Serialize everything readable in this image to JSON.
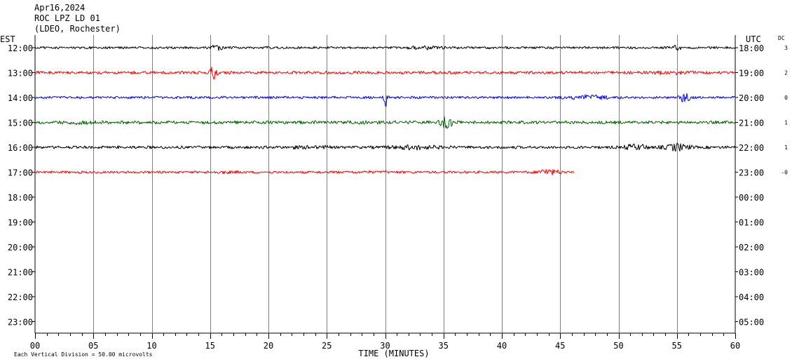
{
  "header": {
    "date": "Apr16,2024",
    "station": "ROC LPZ LD 01",
    "network": "(LDEO, Rochester)"
  },
  "left_axis_label": "EST",
  "right_axis_label": "UTC",
  "dc_label": "DC",
  "footer": {
    "scale_note": "Each Vertical Division =   50.00 microvolts",
    "xlabel": "TIME (MINUTES)"
  },
  "colors": {
    "black": "#000000",
    "red": "#ff0000",
    "blue": "#0000ff",
    "green": "#006400",
    "grid": "#808080"
  },
  "chart_data": {
    "type": "line",
    "title": "ROC LPZ LD 01",
    "xlabel": "TIME (MINUTES)",
    "ylabel": "",
    "xlim": [
      0,
      60
    ],
    "x_ticks": [
      "00",
      "05",
      "10",
      "15",
      "20",
      "25",
      "30",
      "35",
      "40",
      "45",
      "50",
      "55",
      "60"
    ],
    "minor_tick_step": 1,
    "grid": "vertical lines every 5 minutes",
    "rows": [
      {
        "est": "12:00",
        "utc": "18:00",
        "dc": "3"
      },
      {
        "est": "13:00",
        "utc": "19:00",
        "dc": "2"
      },
      {
        "est": "14:00",
        "utc": "20:00",
        "dc": "0"
      },
      {
        "est": "15:00",
        "utc": "21:00",
        "dc": "1"
      },
      {
        "est": "16:00",
        "utc": "22:00",
        "dc": "1"
      },
      {
        "est": "17:00",
        "utc": "23:00",
        "dc": "-0"
      },
      {
        "est": "18:00",
        "utc": "00:00",
        "dc": ""
      },
      {
        "est": "19:00",
        "utc": "01:00",
        "dc": ""
      },
      {
        "est": "20:00",
        "utc": "02:00",
        "dc": ""
      },
      {
        "est": "21:00",
        "utc": "03:00",
        "dc": ""
      },
      {
        "est": "22:00",
        "utc": "04:00",
        "dc": ""
      },
      {
        "est": "23:00",
        "utc": "05:00",
        "dc": ""
      }
    ],
    "series": [
      {
        "est": "12:00",
        "color": "black",
        "end_minute": 60,
        "base_amp": 1.8,
        "bursts": [
          [
            15.5,
            0.5,
            3.0
          ],
          [
            33.5,
            1.5,
            2.0
          ],
          [
            55.0,
            0.4,
            3.0
          ]
        ]
      },
      {
        "est": "13:00",
        "color": "red",
        "end_minute": 60,
        "base_amp": 2.2,
        "bursts": [
          [
            15.3,
            0.3,
            5.0
          ],
          [
            54.5,
            2.0,
            1.5
          ]
        ]
      },
      {
        "est": "14:00",
        "color": "blue",
        "end_minute": 60,
        "base_amp": 2.0,
        "bursts": [
          [
            30.1,
            0.2,
            8.0
          ],
          [
            47.5,
            1.5,
            2.5
          ],
          [
            55.7,
            0.5,
            4.0
          ]
        ]
      },
      {
        "est": "15:00",
        "color": "green",
        "end_minute": 60,
        "base_amp": 2.4,
        "bursts": [
          [
            35.3,
            0.5,
            4.0
          ],
          [
            4.0,
            1.5,
            1.5
          ],
          [
            28.0,
            3.0,
            1.2
          ]
        ]
      },
      {
        "est": "16:00",
        "color": "black",
        "end_minute": 60,
        "base_amp": 2.2,
        "bursts": [
          [
            32.5,
            2.0,
            2.0
          ],
          [
            51.5,
            1.0,
            2.5
          ],
          [
            55.0,
            1.0,
            3.0
          ],
          [
            23.5,
            2.0,
            1.5
          ]
        ]
      },
      {
        "est": "17:00",
        "color": "red",
        "end_minute": 46.2,
        "base_amp": 1.8,
        "bursts": [
          [
            44.0,
            1.0,
            3.0
          ],
          [
            16.5,
            1.5,
            1.5
          ],
          [
            28.5,
            3.0,
            1.3
          ]
        ]
      }
    ]
  }
}
